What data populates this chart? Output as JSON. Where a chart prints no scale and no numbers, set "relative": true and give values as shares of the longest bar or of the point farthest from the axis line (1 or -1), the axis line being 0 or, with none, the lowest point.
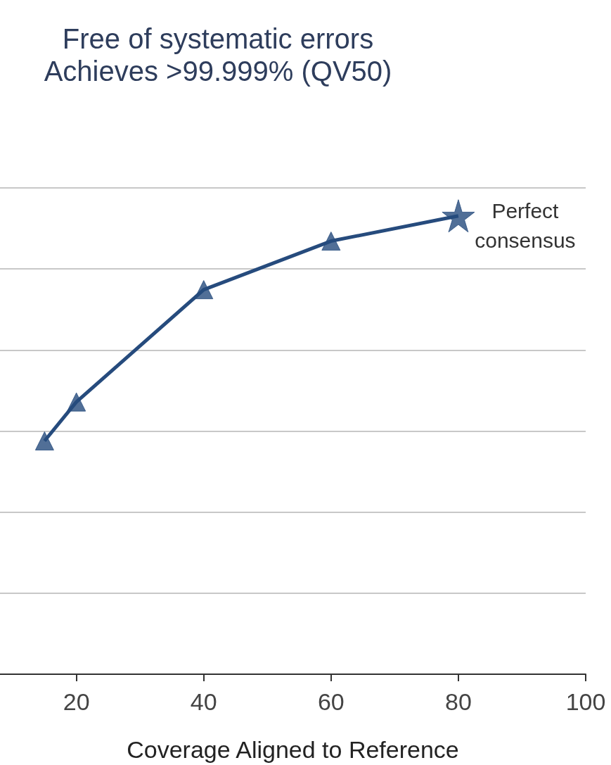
{
  "chart_data": {
    "type": "line",
    "title": "Free of systematic errors",
    "subtitle": "Achieves >99.999% (QV50)",
    "xlabel": "Coverage Aligned to Reference",
    "relative": true,
    "xlim": [
      8,
      100
    ],
    "xticks": [
      20,
      40,
      60,
      80,
      100
    ],
    "grid": "y",
    "tick_labels": "x",
    "series": [
      {
        "marker": "none",
        "color": "#264b7d",
        "x": [
          15,
          20,
          40,
          60,
          80
        ],
        "values": [
          0.509,
          0.594,
          0.839,
          0.945,
          1
        ]
      },
      {
        "type": "scatter",
        "marker": "triangle",
        "color": "#264b7d",
        "x": [
          15,
          20,
          40,
          60
        ],
        "values": [
          0.509,
          0.594,
          0.839,
          0.945
        ]
      },
      {
        "type": "scatter",
        "marker": "star",
        "color": "#264b7d",
        "x": [
          80
        ],
        "values": [
          1
        ]
      }
    ],
    "annotations": [
      {
        "text": "Perfect\nconsensus",
        "x": 80,
        "y": 1
      }
    ]
  }
}
